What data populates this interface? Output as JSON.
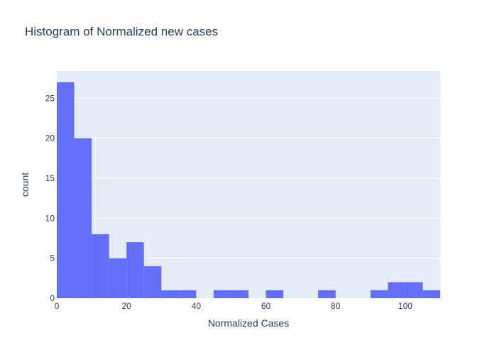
{
  "chart_data": {
    "type": "bar",
    "subtype": "histogram",
    "title": "Histogram of Normalized new cases",
    "xlabel": "Normalized Cases",
    "ylabel": "count",
    "xlim": [
      0,
      110
    ],
    "ylim": [
      0,
      28.4
    ],
    "bin_width": 5,
    "bins": [
      {
        "start": 0,
        "end": 5,
        "count": 27
      },
      {
        "start": 5,
        "end": 10,
        "count": 20
      },
      {
        "start": 10,
        "end": 15,
        "count": 8
      },
      {
        "start": 15,
        "end": 20,
        "count": 5
      },
      {
        "start": 20,
        "end": 25,
        "count": 7
      },
      {
        "start": 25,
        "end": 30,
        "count": 4
      },
      {
        "start": 30,
        "end": 35,
        "count": 1
      },
      {
        "start": 35,
        "end": 40,
        "count": 1
      },
      {
        "start": 40,
        "end": 45,
        "count": 0
      },
      {
        "start": 45,
        "end": 50,
        "count": 1
      },
      {
        "start": 50,
        "end": 55,
        "count": 1
      },
      {
        "start": 55,
        "end": 60,
        "count": 0
      },
      {
        "start": 60,
        "end": 65,
        "count": 1
      },
      {
        "start": 65,
        "end": 70,
        "count": 0
      },
      {
        "start": 70,
        "end": 75,
        "count": 0
      },
      {
        "start": 75,
        "end": 80,
        "count": 1
      },
      {
        "start": 80,
        "end": 85,
        "count": 0
      },
      {
        "start": 85,
        "end": 90,
        "count": 0
      },
      {
        "start": 90,
        "end": 95,
        "count": 1
      },
      {
        "start": 95,
        "end": 100,
        "count": 2
      },
      {
        "start": 100,
        "end": 105,
        "count": 2
      },
      {
        "start": 105,
        "end": 110,
        "count": 1
      }
    ],
    "x_ticks": [
      "0",
      "20",
      "40",
      "60",
      "80",
      "100"
    ],
    "y_ticks": [
      "0",
      "5",
      "10",
      "15",
      "20",
      "25"
    ],
    "grid": true,
    "colors": {
      "bar": "#636efa",
      "plot_background": "#e5ecf6",
      "grid": "#ffffff",
      "text": "#2a3f5f"
    }
  }
}
